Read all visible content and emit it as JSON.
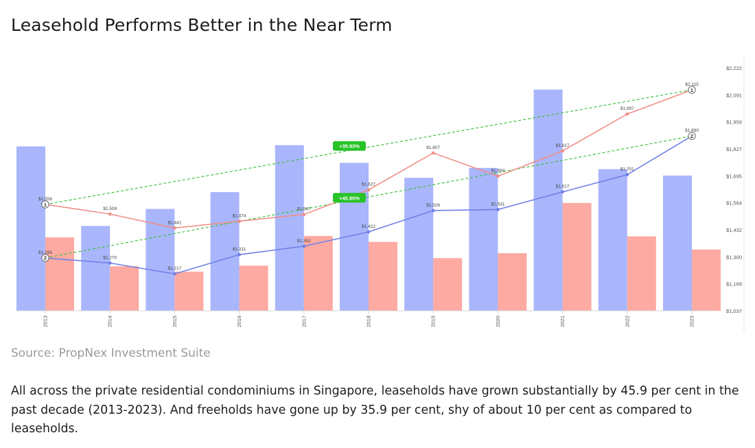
{
  "header": {
    "title": "Leasehold Performs Better in the Near Term"
  },
  "source": "Source: PropNex Investment Suite",
  "body": "All across the private residential condominiums in Singapore, leaseholds have grown substantially by 45.9 per cent in the past decade (2013-2023). And freeholds have gone up by 35.9 per cent, shy of about 10 per cent as compared to leaseholds.",
  "colors": {
    "bar_blue": "#a9b6fb",
    "bar_pink": "#fdaaa3",
    "line_freehold": "#ef8f87",
    "line_leasehold": "#6f80e6",
    "trend": "#3cc13c",
    "badge": "#28c328"
  },
  "chart_data": {
    "type": "bar",
    "categories": [
      "2013",
      "2014",
      "2015",
      "2016",
      "2017",
      "2018",
      "2019",
      "2020",
      "2021",
      "2022",
      "2023"
    ],
    "bar_series": [
      {
        "values": [
          1839,
          1451,
          1534,
          1616,
          1845,
          1759,
          1686,
          1734,
          2116,
          1728,
          1697
        ]
      },
      {
        "values": [
          1395,
          1254,
          1228,
          1257,
          1402,
          1373,
          1294,
          1318,
          1563,
          1400,
          1336
        ]
      }
    ],
    "line_series": [
      {
        "values": [
          1556,
          1509,
          1441,
          1474,
          1507,
          1627,
          1807,
          1694,
          1817,
          1997,
          2115
        ],
        "labels": [
          "$1,556",
          "$1,509",
          "$1,441",
          "$1,474",
          "$1,507",
          "$1,627",
          "$1,807",
          "$1,694",
          "$1,817",
          "$1,997",
          "$2,115"
        ]
      },
      {
        "values": [
          1295,
          1270,
          1217,
          1311,
          1352,
          1422,
          1526,
          1531,
          1617,
          1701,
          1890
        ],
        "labels": [
          "$1,295",
          "$1,270",
          "$1,217",
          "$1,311",
          "$1,352",
          "$1,422",
          "$1,526",
          "$1,531",
          "$1,617",
          "$1,701",
          "$1,890"
        ]
      }
    ],
    "markers": [
      "1",
      "2"
    ],
    "annotations": [
      "+35.93%",
      "+45.95%"
    ],
    "y_ticks": [
      "$2,222",
      "$2,091",
      "$1,959",
      "$1,827",
      "$1,695",
      "$1,564",
      "$1,432",
      "$1,300",
      "$1,169",
      "$1,037"
    ],
    "ylim": [
      1037,
      2222
    ],
    "y_axis_side": "right",
    "grid": false
  }
}
